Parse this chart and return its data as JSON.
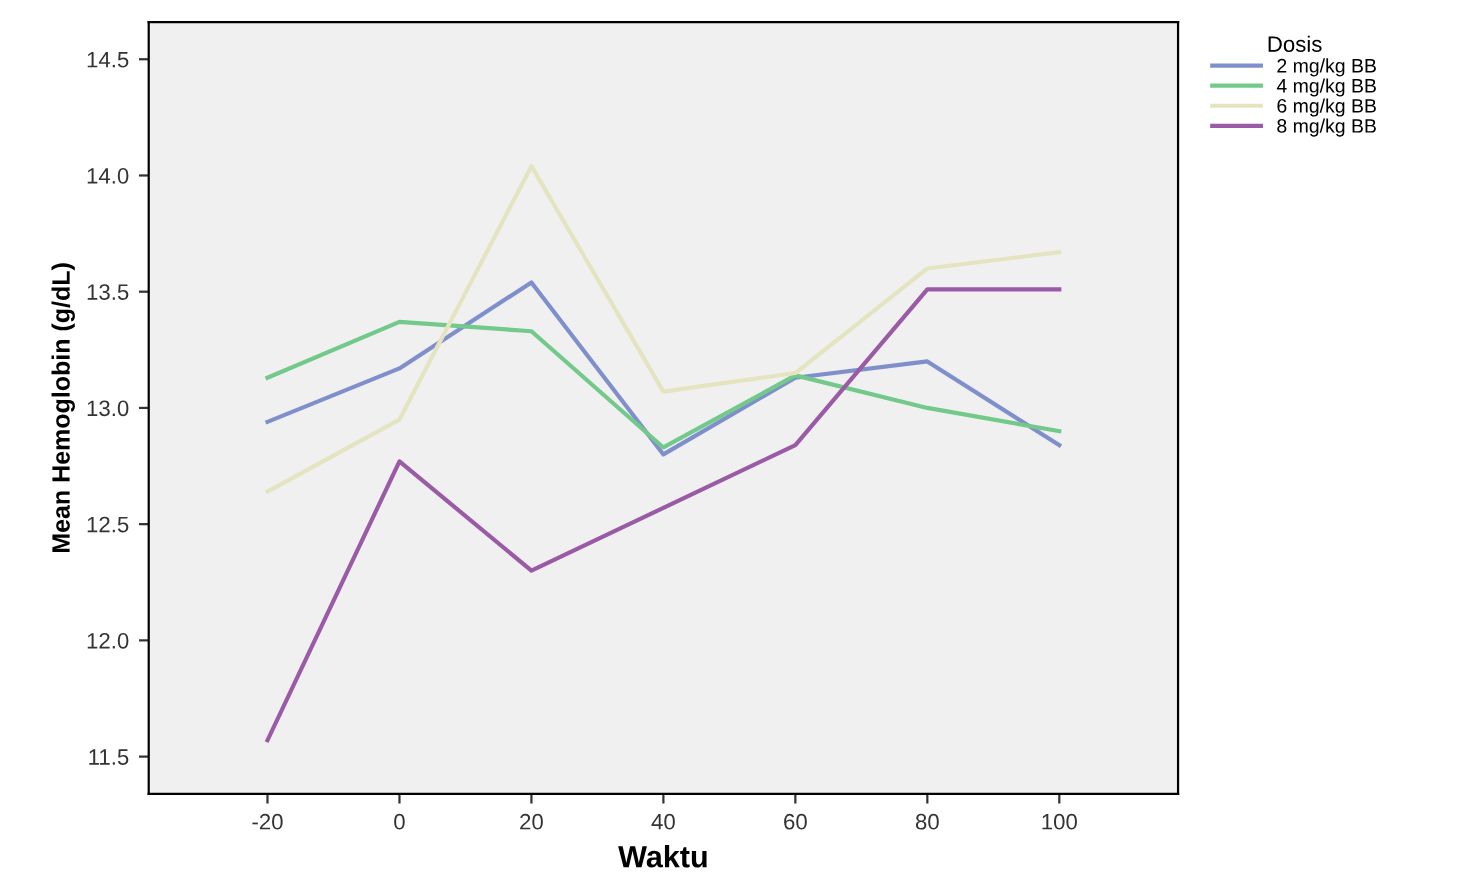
{
  "chart_data": {
    "type": "line",
    "xlabel": "Waktu",
    "ylabel": "Mean Hemoglobin (g/dL)",
    "legend_title": "Dosis",
    "legend": "top right",
    "grid": false,
    "marker": "none",
    "line_style": "solid",
    "x": [
      -20,
      0,
      20,
      40,
      60,
      80,
      100
    ],
    "xlim": [
      -38,
      118
    ],
    "xticks": [
      -20,
      0,
      20,
      40,
      60,
      80,
      100
    ],
    "ylim": [
      11.34,
      14.66
    ],
    "yticks": [
      {
        "value": 11.5,
        "label": "11.5"
      },
      {
        "value": 12.0,
        "label": "12.0"
      },
      {
        "value": 12.5,
        "label": "12.5"
      },
      {
        "value": 13.0,
        "label": "13.0"
      },
      {
        "value": 13.5,
        "label": "13.5"
      },
      {
        "value": 14.0,
        "label": "14.0"
      },
      {
        "value": 14.5,
        "label": "14.5"
      }
    ],
    "series": [
      {
        "name": "2 mg/kg BB",
        "color": "#7f8fcc",
        "values": [
          12.94,
          13.17,
          13.54,
          12.8,
          13.13,
          13.2,
          12.84
        ]
      },
      {
        "name": "4 mg/kg BB",
        "color": "#72c98a",
        "values": [
          13.13,
          13.37,
          13.33,
          12.83,
          13.14,
          13.0,
          12.9
        ]
      },
      {
        "name": "6 mg/kg BB",
        "color": "#e4e4c0",
        "values": [
          12.64,
          12.95,
          14.04,
          13.07,
          13.15,
          13.6,
          13.67
        ]
      },
      {
        "name": "8 mg/kg BB",
        "color": "#9a5aa6",
        "values": [
          11.57,
          12.77,
          12.3,
          12.57,
          12.84,
          13.51,
          13.51
        ]
      }
    ]
  }
}
